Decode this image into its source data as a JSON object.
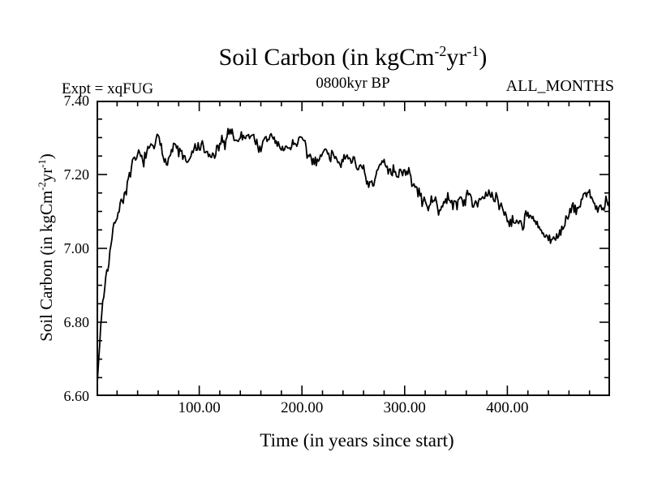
{
  "page": {
    "background": "#ffffff",
    "foreground": "#000000"
  },
  "header": {
    "expt_label": "Expt = xqFUG",
    "months_label": "ALL_MONTHS",
    "subtitle": "0800kyr BP"
  },
  "title_parts": {
    "base": "Soil Carbon (in kgCm",
    "sup1": "-2",
    "mid": "yr",
    "sup2": "-1",
    "close": ")"
  },
  "axis_titles": {
    "x": "Time (in years since start)",
    "y": "Soil Carbon (in kgCm^-2yr^-1)"
  },
  "chart_data": {
    "type": "line",
    "title": "Soil Carbon (in kgCm^-2yr^-1)",
    "subtitle": "0800kyr BP",
    "xlabel": "Time (in years since start)",
    "ylabel": "Soil Carbon (in kgCm^-2yr^-1)",
    "xlim": [
      0,
      500
    ],
    "ylim": [
      6.6,
      7.4
    ],
    "grid": false,
    "frame": "box-with-inward-ticks",
    "x_major_ticks": [
      100,
      200,
      300,
      400
    ],
    "x_tick_labels": [
      "100.00",
      "200.00",
      "300.00",
      "400.00"
    ],
    "x_minor_step": 20,
    "y_major_ticks": [
      7.4,
      7.2,
      7.0,
      6.8,
      6.6
    ],
    "y_tick_labels": [
      "7.40",
      "7.20",
      "7.00",
      "6.80",
      "6.60"
    ],
    "y_minor_step": 0.05,
    "line_color": "#000000",
    "series": [
      {
        "name": "soil_carbon_annual",
        "x_start": 0,
        "x_step": 5,
        "values": [
          6.6,
          6.83,
          6.945,
          7.03,
          7.095,
          7.135,
          7.17,
          7.22,
          7.242,
          7.243,
          7.255,
          7.28,
          7.295,
          7.248,
          7.253,
          7.275,
          7.262,
          7.247,
          7.23,
          7.263,
          7.277,
          7.265,
          7.243,
          7.253,
          7.27,
          7.287,
          7.323,
          7.3,
          7.298,
          7.307,
          7.305,
          7.293,
          7.273,
          7.285,
          7.307,
          7.293,
          7.26,
          7.268,
          7.282,
          7.29,
          7.293,
          7.252,
          7.23,
          7.25,
          7.258,
          7.265,
          7.252,
          7.253,
          7.23,
          7.232,
          7.248,
          7.225,
          7.197,
          7.162,
          7.17,
          7.217,
          7.233,
          7.22,
          7.212,
          7.206,
          7.215,
          7.19,
          7.163,
          7.14,
          7.121,
          7.128,
          7.115,
          7.112,
          7.123,
          7.13,
          7.122,
          7.132,
          7.14,
          7.132,
          7.131,
          7.14,
          7.137,
          7.138,
          7.13,
          7.113,
          7.083,
          7.075,
          7.077,
          7.072,
          7.1,
          7.067,
          7.053,
          7.04,
          7.013,
          7.02,
          7.045,
          7.065,
          7.09,
          7.1,
          7.117,
          7.143,
          7.155,
          7.12,
          7.1,
          7.11,
          7.12
        ],
        "noise_amplitude": 0.012,
        "sample_step_years": 1
      }
    ]
  }
}
